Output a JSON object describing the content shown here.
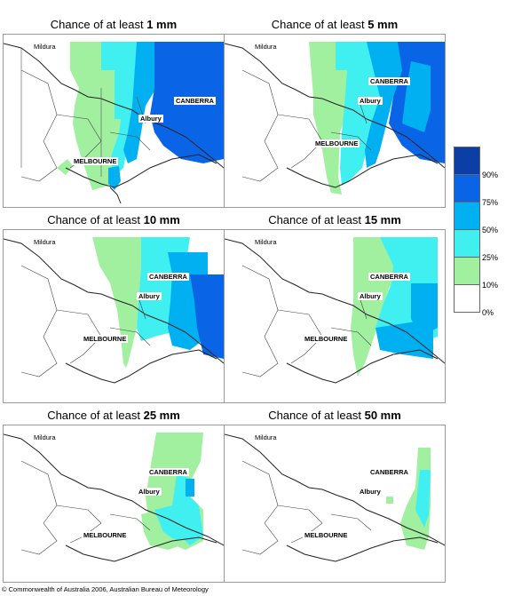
{
  "panels": [
    {
      "prefix": "Chance of at least",
      "amount": "1 mm"
    },
    {
      "prefix": "Chance of at least",
      "amount": "5 mm"
    },
    {
      "prefix": "Chance of at least",
      "amount": "10 mm"
    },
    {
      "prefix": "Chance of at least",
      "amount": "15 mm"
    },
    {
      "prefix": "Chance of at least",
      "amount": "25 mm"
    },
    {
      "prefix": "Chance of at least",
      "amount": "50 mm"
    }
  ],
  "places": {
    "mildura": "Mildura",
    "canberra": "CANBERRA",
    "albury": "Albury",
    "melbourne": "MELBOURNE"
  },
  "legend": {
    "ticks": [
      "90%",
      "75%",
      "50%",
      "25%",
      "10%",
      "0%"
    ],
    "colors": [
      "#0b3fa6",
      "#0a64e6",
      "#00b0f0",
      "#40f0f0",
      "#a0f0a0",
      "#ffffff"
    ]
  },
  "copyright": "© Commonwealth of Australia 2006, Australian Bureau of Meteorology"
}
